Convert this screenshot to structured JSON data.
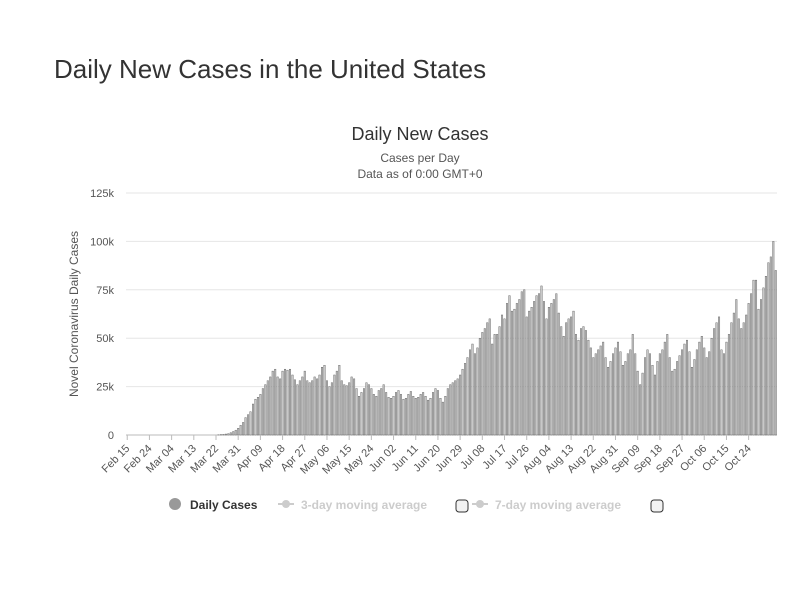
{
  "page": {
    "title": "Daily New Cases in the United States"
  },
  "colors": {
    "bar": "#c8c8c8",
    "bar_stroke": "#555555",
    "grid": "#e6e6e6",
    "legend_active": "#333333",
    "legend_inactive": "#cccccc"
  },
  "legend": [
    {
      "label": "Daily Cases",
      "active": true,
      "icon": "circle-marker-icon"
    },
    {
      "label": "3-day moving average",
      "active": false,
      "icon": "line-marker-icon"
    },
    {
      "label": "7-day moving average",
      "active": false,
      "icon": "line-marker-icon"
    }
  ],
  "chart_data": {
    "type": "bar",
    "title": "Daily New Cases",
    "subtitle_lines": [
      "Cases per Day",
      "Data as of 0:00 GMT+0"
    ],
    "xlabel": "",
    "ylabel": "Novel Coronavirus Daily Cases",
    "ylim": [
      0,
      125000
    ],
    "yticks": [
      0,
      25000,
      50000,
      75000,
      100000,
      125000
    ],
    "ytick_labels": [
      "0",
      "25k",
      "50k",
      "75k",
      "100k",
      "125k"
    ],
    "grid": true,
    "legend_position": "bottom",
    "start_date": "Feb 15",
    "x_tick_labels": [
      "Feb 15",
      "Feb 24",
      "Mar 04",
      "Mar 13",
      "Mar 22",
      "Mar 31",
      "Apr 09",
      "Apr 18",
      "Apr 27",
      "May 06",
      "May 15",
      "May 24",
      "Jun 02",
      "Jun 11",
      "Jun 20",
      "Jun 29",
      "Jul 08",
      "Jul 17",
      "Jul 26",
      "Aug 04",
      "Aug 13",
      "Aug 22",
      "Aug 31",
      "Sep 09",
      "Sep 18",
      "Sep 27",
      "Oct 06",
      "Oct 15",
      "Oct 24"
    ],
    "series": [
      {
        "name": "Daily Cases",
        "values": [
          0,
          0,
          0,
          0,
          0,
          0,
          0,
          0,
          0,
          0,
          0,
          0,
          0,
          0,
          0,
          0,
          0,
          0,
          0,
          0,
          0,
          0,
          0,
          0,
          0,
          0,
          0,
          0,
          0,
          0,
          0,
          0,
          0,
          0,
          0,
          0,
          0,
          100,
          200,
          300,
          500,
          700,
          1200,
          1800,
          2500,
          3500,
          5000,
          6500,
          9000,
          10500,
          12000,
          16000,
          18500,
          19500,
          21000,
          24000,
          26000,
          28000,
          30000,
          33000,
          34000,
          30000,
          29000,
          33000,
          34000,
          33500,
          34000,
          31000,
          28500,
          26000,
          28000,
          30000,
          33000,
          28000,
          27000,
          28000,
          30000,
          29000,
          31000,
          35000,
          36000,
          28000,
          25000,
          27000,
          31000,
          33000,
          36000,
          28000,
          26000,
          25500,
          27000,
          30000,
          29000,
          24000,
          20000,
          22000,
          24000,
          27000,
          26000,
          24000,
          21000,
          20000,
          23000,
          24000,
          26000,
          22000,
          19500,
          19000,
          20000,
          22000,
          23000,
          21000,
          18500,
          19000,
          21000,
          22500,
          20000,
          19000,
          19500,
          21000,
          22000,
          20000,
          18000,
          19000,
          22000,
          24000,
          23000,
          19000,
          17000,
          20000,
          24000,
          26000,
          27000,
          28000,
          29000,
          31000,
          34000,
          37000,
          40000,
          44000,
          47000,
          42000,
          45000,
          50000,
          53000,
          55000,
          58000,
          60000,
          47000,
          52000,
          52000,
          56000,
          62000,
          60000,
          68000,
          72000,
          64000,
          65000,
          68000,
          70000,
          74000,
          75000,
          61000,
          64000,
          66000,
          69000,
          72000,
          73000,
          77000,
          69000,
          60000,
          66000,
          68000,
          70000,
          73000,
          63000,
          56000,
          51000,
          58000,
          60000,
          61000,
          64000,
          52000,
          49000,
          55000,
          56000,
          54000,
          49000,
          45000,
          40000,
          42000,
          44000,
          46000,
          48000,
          40000,
          35000,
          38000,
          42000,
          45000,
          48000,
          43000,
          36000,
          38000,
          42000,
          44000,
          52000,
          42000,
          33000,
          26000,
          32000,
          40000,
          44000,
          42000,
          36000,
          31000,
          38000,
          42000,
          44000,
          48000,
          52000,
          40000,
          33000,
          34000,
          38000,
          41000,
          44000,
          47000,
          49000,
          43000,
          35000,
          39000,
          44000,
          48000,
          51000,
          45000,
          40000,
          43000,
          50000,
          55000,
          58000,
          61000,
          44000,
          42000,
          48000,
          52000,
          58000,
          63000,
          70000,
          60000,
          55000,
          58000,
          62000,
          68000,
          73000,
          80000,
          80000,
          65000,
          70000,
          76000,
          82000,
          89000,
          92000,
          100000,
          85000
        ]
      }
    ]
  }
}
